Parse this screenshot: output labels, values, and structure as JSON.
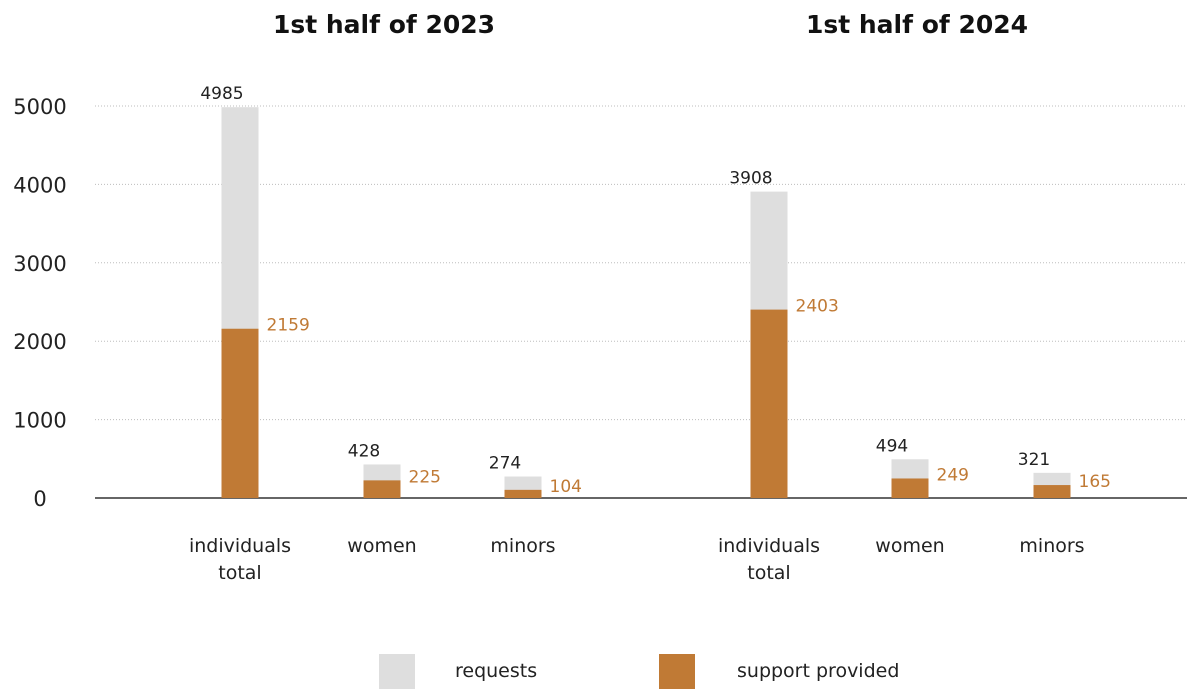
{
  "chart_data": {
    "type": "bar",
    "ylim": [
      0,
      5000
    ],
    "yticks": [
      0,
      1000,
      2000,
      3000,
      4000,
      5000
    ],
    "grid": true,
    "legend_placement": "bottom-center",
    "colors": {
      "requests": "#dedede",
      "support": "#c07a35",
      "support_label": "#c07a35"
    },
    "legend": [
      {
        "key": "requests",
        "label": "requests"
      },
      {
        "key": "support",
        "label": "support provided"
      }
    ],
    "panels": [
      {
        "title": "1st half of 2023",
        "categories": [
          [
            "individuals",
            "total"
          ],
          [
            "women"
          ],
          [
            "minors"
          ]
        ],
        "requests": [
          4985,
          428,
          274
        ],
        "support": [
          2159,
          225,
          104
        ]
      },
      {
        "title": "1st half of 2024",
        "categories": [
          [
            "individuals",
            "total"
          ],
          [
            "women"
          ],
          [
            "minors"
          ]
        ],
        "requests": [
          3908,
          494,
          321
        ],
        "support": [
          2403,
          249,
          165
        ]
      }
    ]
  }
}
